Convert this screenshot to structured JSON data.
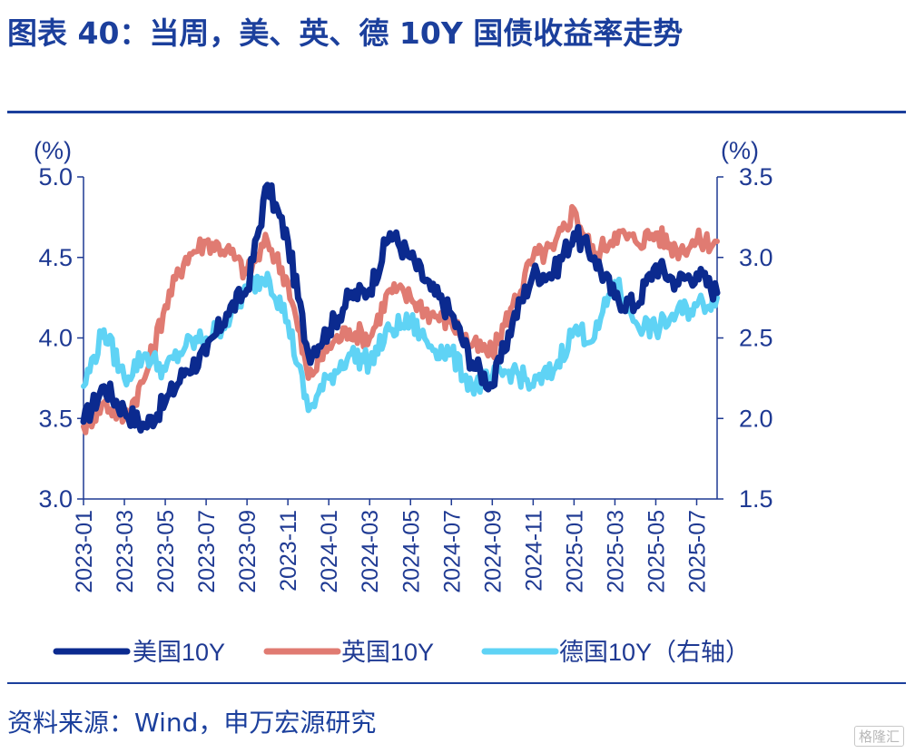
{
  "header": {
    "title": "图表 40：当周，美、英、德 10Y 国债收益率走势"
  },
  "footer": {
    "source": "资料来源：Wind，申万宏源研究",
    "watermark": "格隆汇"
  },
  "colors": {
    "us": "#0b2a8f",
    "uk": "#e07b72",
    "de": "#5fd3f5",
    "axis": "#1f3a93"
  },
  "chart_data": {
    "type": "line",
    "left_axis": {
      "unit": "(%)",
      "ylim": [
        3.0,
        5.0
      ],
      "ticks": [
        "3.0",
        "3.5",
        "4.0",
        "4.5",
        "5.0"
      ]
    },
    "right_axis": {
      "unit": "(%)",
      "ylim": [
        1.5,
        3.5
      ],
      "ticks": [
        "1.5",
        "2.0",
        "2.5",
        "3.0",
        "3.5"
      ]
    },
    "x_ticks": [
      "2023-01",
      "2023-03",
      "2023-05",
      "2023-07",
      "2023-09",
      "2023-11",
      "2024-01",
      "2024-03",
      "2024-05",
      "2024-07",
      "2024-09",
      "2024-11",
      "2025-01",
      "2025-03",
      "2025-05",
      "2025-07"
    ],
    "x_range": [
      "2023-01",
      "2025-08"
    ],
    "series": [
      {
        "name": "美国10Y",
        "axis": "left",
        "x": [
          "2023-01",
          "2023-02",
          "2023-03",
          "2023-04",
          "2023-05",
          "2023-06",
          "2023-07",
          "2023-08",
          "2023-09",
          "2023-10",
          "2023-11",
          "2023-12",
          "2024-01",
          "2024-02",
          "2024-03",
          "2024-04",
          "2024-05",
          "2024-06",
          "2024-07",
          "2024-08",
          "2024-09",
          "2024-10",
          "2024-11",
          "2024-12",
          "2025-01",
          "2025-02",
          "2025-03",
          "2025-04",
          "2025-05",
          "2025-06",
          "2025-07",
          "2025-08"
        ],
        "values": [
          3.48,
          3.7,
          3.55,
          3.45,
          3.6,
          3.8,
          3.9,
          4.15,
          4.3,
          4.95,
          4.6,
          3.9,
          4.05,
          4.25,
          4.3,
          4.65,
          4.5,
          4.3,
          4.15,
          3.85,
          3.7,
          4.1,
          4.4,
          4.4,
          4.65,
          4.5,
          4.25,
          4.2,
          4.45,
          4.35,
          4.4,
          4.28
        ]
      },
      {
        "name": "英国10Y",
        "axis": "left",
        "x": [
          "2023-01",
          "2023-02",
          "2023-03",
          "2023-04",
          "2023-05",
          "2023-06",
          "2023-07",
          "2023-08",
          "2023-09",
          "2023-10",
          "2023-11",
          "2023-12",
          "2024-01",
          "2024-02",
          "2024-03",
          "2024-04",
          "2024-05",
          "2024-06",
          "2024-07",
          "2024-08",
          "2024-09",
          "2024-10",
          "2024-11",
          "2024-12",
          "2025-01",
          "2025-02",
          "2025-03",
          "2025-04",
          "2025-05",
          "2025-06",
          "2025-07",
          "2025-08"
        ],
        "values": [
          3.45,
          3.6,
          3.5,
          3.75,
          4.2,
          4.5,
          4.6,
          4.55,
          4.4,
          4.6,
          4.35,
          3.75,
          3.95,
          4.05,
          4.0,
          4.3,
          4.25,
          4.15,
          4.1,
          3.95,
          3.9,
          4.2,
          4.5,
          4.55,
          4.8,
          4.5,
          4.65,
          4.6,
          4.65,
          4.55,
          4.6,
          4.6
        ]
      },
      {
        "name": "德国10Y（右轴）",
        "axis": "right",
        "x": [
          "2023-01",
          "2023-02",
          "2023-03",
          "2023-04",
          "2023-05",
          "2023-06",
          "2023-07",
          "2023-08",
          "2023-09",
          "2023-10",
          "2023-11",
          "2023-12",
          "2024-01",
          "2024-02",
          "2024-03",
          "2024-04",
          "2024-05",
          "2024-06",
          "2024-07",
          "2024-08",
          "2024-09",
          "2024-10",
          "2024-11",
          "2024-12",
          "2025-01",
          "2025-02",
          "2025-03",
          "2025-04",
          "2025-05",
          "2025-06",
          "2025-07",
          "2025-08"
        ],
        "values": [
          2.2,
          2.55,
          2.25,
          2.4,
          2.3,
          2.45,
          2.5,
          2.6,
          2.8,
          2.9,
          2.6,
          2.05,
          2.25,
          2.4,
          2.35,
          2.55,
          2.6,
          2.45,
          2.4,
          2.2,
          2.25,
          2.3,
          2.2,
          2.3,
          2.55,
          2.5,
          2.85,
          2.6,
          2.55,
          2.65,
          2.7,
          2.75
        ]
      }
    ],
    "legend": "bottom"
  }
}
